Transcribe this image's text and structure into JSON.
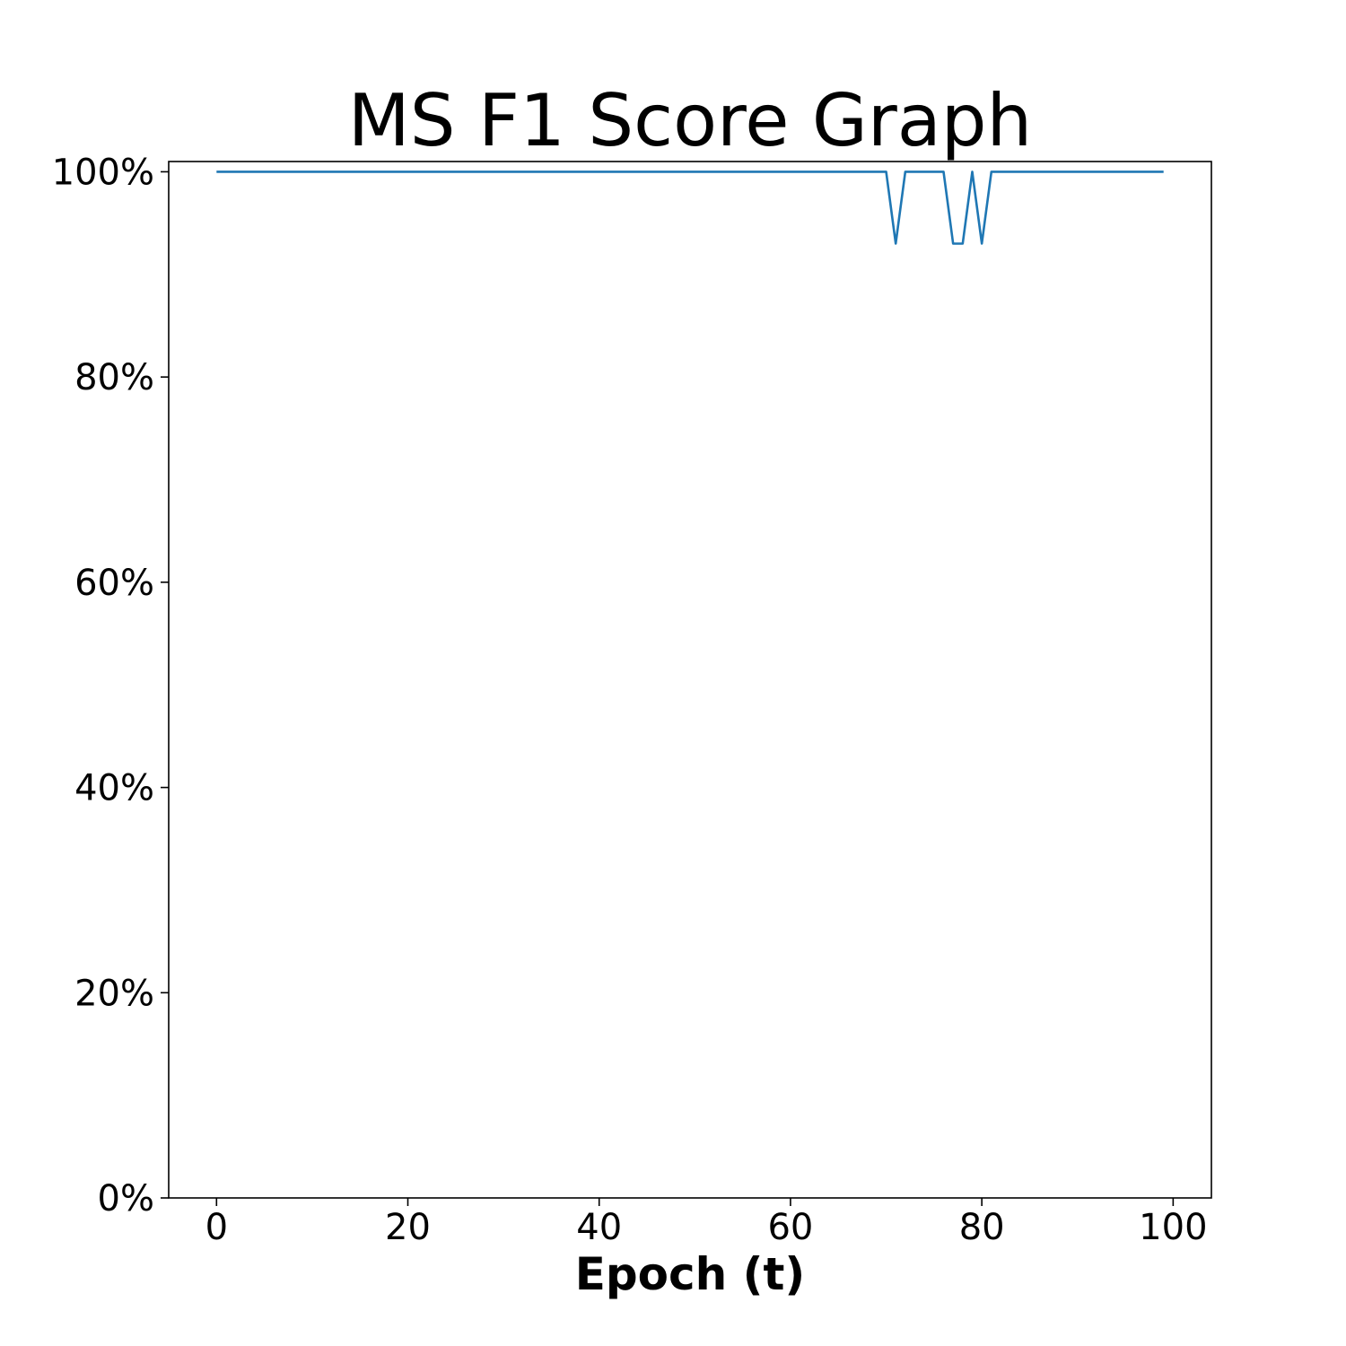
{
  "chart_data": {
    "type": "line",
    "title": "MS F1 Score Graph",
    "xlabel": "Epoch (t)",
    "ylabel": "",
    "xlim": [
      -5,
      104
    ],
    "ylim": [
      0,
      101
    ],
    "x_ticks": [
      0,
      20,
      40,
      60,
      80,
      100
    ],
    "y_ticks": [
      0,
      20,
      40,
      60,
      80,
      100
    ],
    "y_tick_labels": [
      "0%",
      "20%",
      "40%",
      "60%",
      "80%",
      "100%"
    ],
    "grid": false,
    "legend": "none",
    "colors": {
      "line": "#1f77b4",
      "axes": "#000000",
      "background": "#ffffff"
    },
    "series": [
      {
        "x": [
          0,
          1,
          2,
          3,
          4,
          5,
          6,
          7,
          8,
          9,
          10,
          11,
          12,
          13,
          14,
          15,
          16,
          17,
          18,
          19,
          20,
          21,
          22,
          23,
          24,
          25,
          26,
          27,
          28,
          29,
          30,
          31,
          32,
          33,
          34,
          35,
          36,
          37,
          38,
          39,
          40,
          41,
          42,
          43,
          44,
          45,
          46,
          47,
          48,
          49,
          50,
          51,
          52,
          53,
          54,
          55,
          56,
          57,
          58,
          59,
          60,
          61,
          62,
          63,
          64,
          65,
          66,
          67,
          68,
          69,
          70,
          71,
          72,
          73,
          74,
          75,
          76,
          77,
          78,
          79,
          80,
          81,
          82,
          83,
          84,
          85,
          86,
          87,
          88,
          89,
          90,
          91,
          92,
          93,
          94,
          95,
          96,
          97,
          98,
          99
        ],
        "values": [
          100,
          100,
          100,
          100,
          100,
          100,
          100,
          100,
          100,
          100,
          100,
          100,
          100,
          100,
          100,
          100,
          100,
          100,
          100,
          100,
          100,
          100,
          100,
          100,
          100,
          100,
          100,
          100,
          100,
          100,
          100,
          100,
          100,
          100,
          100,
          100,
          100,
          100,
          100,
          100,
          100,
          100,
          100,
          100,
          100,
          100,
          100,
          100,
          100,
          100,
          100,
          100,
          100,
          100,
          100,
          100,
          100,
          100,
          100,
          100,
          100,
          100,
          100,
          100,
          100,
          100,
          100,
          100,
          100,
          100,
          100,
          93,
          100,
          100,
          100,
          100,
          100,
          93,
          93,
          100,
          93,
          100,
          100,
          100,
          100,
          100,
          100,
          100,
          100,
          100,
          100,
          100,
          100,
          100,
          100,
          100,
          100,
          100,
          100,
          100
        ]
      }
    ]
  }
}
